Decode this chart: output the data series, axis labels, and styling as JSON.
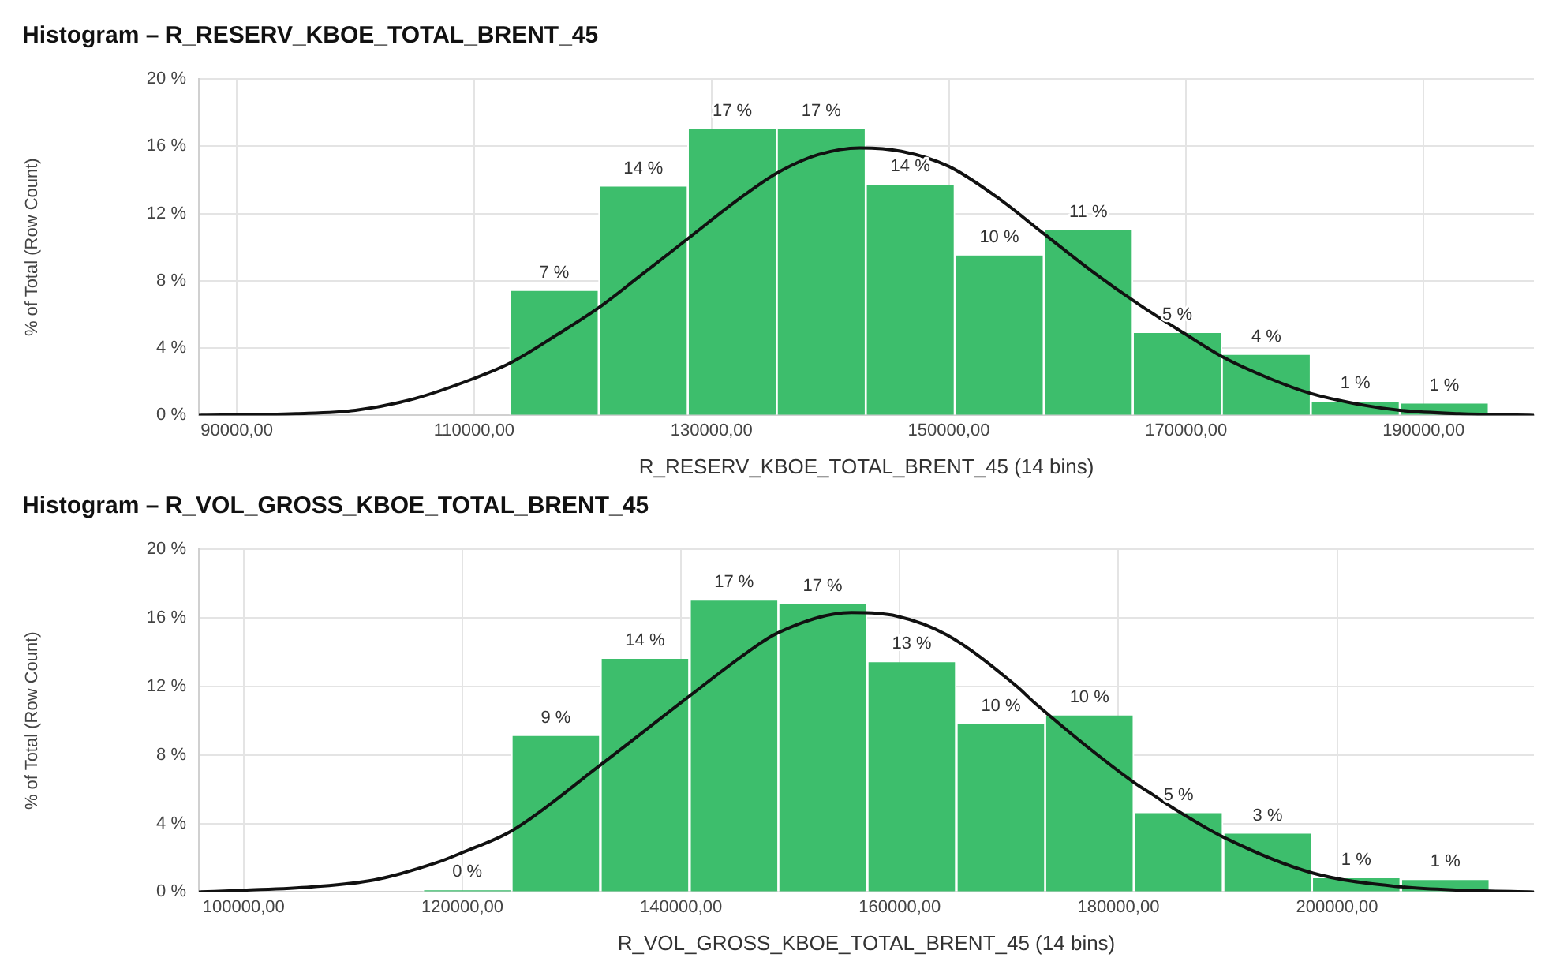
{
  "chart_data": [
    {
      "type": "histogram",
      "title": "Histogram – R_RESERV_KBOE_TOTAL_BRENT_45",
      "xlabel": "R_RESERV_KBOE_TOTAL_BRENT_45 (14 bins)",
      "ylabel": "% of Total (Row Count)",
      "xlim": [
        86800,
        199300
      ],
      "xticks": [
        {
          "value": 90000,
          "label": "90000,00"
        },
        {
          "value": 110000,
          "label": "110000,00"
        },
        {
          "value": 130000,
          "label": "130000,00"
        },
        {
          "value": 150000,
          "label": "150000,00"
        },
        {
          "value": 170000,
          "label": "170000,00"
        },
        {
          "value": 190000,
          "label": "190000,00"
        }
      ],
      "ylim": [
        0,
        20
      ],
      "yticks": [
        {
          "value": 0,
          "label": "0 %"
        },
        {
          "value": 4,
          "label": "4 %"
        },
        {
          "value": 8,
          "label": "8 %"
        },
        {
          "value": 12,
          "label": "12 %"
        },
        {
          "value": 16,
          "label": "16 %"
        },
        {
          "value": 20,
          "label": "20 %"
        }
      ],
      "grid": true,
      "series": [
        {
          "type": "histogram",
          "color": "#3dbe6c",
          "bins": [
            113000,
            120500,
            128000,
            135500,
            143000,
            150500,
            158000,
            165500,
            173000,
            180500,
            188000,
            195500
          ],
          "values": [
            7.4,
            13.6,
            17.0,
            17.0,
            13.7,
            9.5,
            11.0,
            4.9,
            3.6,
            0.8,
            0.7
          ],
          "value_labels": [
            "7 %",
            "14 %",
            "17 %",
            "17 %",
            "14 %",
            "10 %",
            "11 %",
            "5 %",
            "4 %",
            "1 %",
            "1 %"
          ]
        },
        {
          "type": "line",
          "color": "#111111",
          "x": [
            86800,
            95000,
            100000,
            105000,
            110000,
            113000,
            117000,
            120500,
            124000,
            128000,
            132000,
            135500,
            139000,
            142500,
            146000,
            150000,
            154000,
            158000,
            162000,
            166000,
            170000,
            173000,
            177000,
            180500,
            185000,
            188000,
            193000,
            199300
          ],
          "values": [
            0.0,
            0.1,
            0.3,
            1.0,
            2.2,
            3.1,
            4.8,
            6.4,
            8.3,
            10.5,
            12.7,
            14.4,
            15.5,
            15.9,
            15.7,
            14.8,
            13.0,
            10.8,
            8.6,
            6.6,
            4.8,
            3.5,
            2.2,
            1.3,
            0.6,
            0.3,
            0.1,
            0.0
          ]
        }
      ]
    },
    {
      "type": "histogram",
      "title": "Histogram – R_VOL_GROSS_KBOE_TOTAL_BRENT_45",
      "xlabel": "R_VOL_GROSS_KBOE_TOTAL_BRENT_45 (14 bins)",
      "ylabel": "% of Total (Row Count)",
      "xlim": [
        95900,
        218000
      ],
      "xticks": [
        {
          "value": 100000,
          "label": "100000,00"
        },
        {
          "value": 120000,
          "label": "120000,00"
        },
        {
          "value": 140000,
          "label": "140000,00"
        },
        {
          "value": 160000,
          "label": "160000,00"
        },
        {
          "value": 180000,
          "label": "180000,00"
        },
        {
          "value": 200000,
          "label": "200000,00"
        }
      ],
      "ylim": [
        0,
        20
      ],
      "yticks": [
        {
          "value": 0,
          "label": "0 %"
        },
        {
          "value": 4,
          "label": "4 %"
        },
        {
          "value": 8,
          "label": "8 %"
        },
        {
          "value": 12,
          "label": "12 %"
        },
        {
          "value": 16,
          "label": "16 %"
        },
        {
          "value": 20,
          "label": "20 %"
        }
      ],
      "grid": true,
      "series": [
        {
          "type": "histogram",
          "color": "#3dbe6c",
          "bins": [
            116400,
            124500,
            132600,
            140800,
            148900,
            157000,
            165200,
            173300,
            181400,
            189600,
            197700,
            205800,
            214000
          ],
          "values": [
            0.1,
            9.1,
            13.6,
            17.0,
            16.8,
            13.4,
            9.8,
            10.3,
            4.6,
            3.4,
            0.8,
            0.7
          ],
          "value_labels": [
            "0 %",
            "9 %",
            "14 %",
            "17 %",
            "17 %",
            "13 %",
            "10 %",
            "10 %",
            "5 %",
            "3 %",
            "1 %",
            "1 %"
          ]
        },
        {
          "type": "line",
          "color": "#111111",
          "x": [
            95900,
            100000,
            106200,
            111900,
            117600,
            120000,
            124600,
            132400,
            140700,
            146100,
            148800,
            155600,
            159700,
            164300,
            170700,
            172400,
            181400,
            183100,
            185000,
            189600,
            197800,
            205900,
            211600,
            218000
          ],
          "values": [
            0.0,
            0.1,
            0.3,
            0.7,
            1.7,
            2.3,
            3.6,
            7.3,
            11.4,
            14.0,
            15.1,
            16.3,
            16.1,
            15.0,
            12.0,
            11.0,
            6.4,
            5.7,
            4.9,
            3.2,
            1.1,
            0.3,
            0.1,
            0.0
          ]
        }
      ]
    }
  ]
}
